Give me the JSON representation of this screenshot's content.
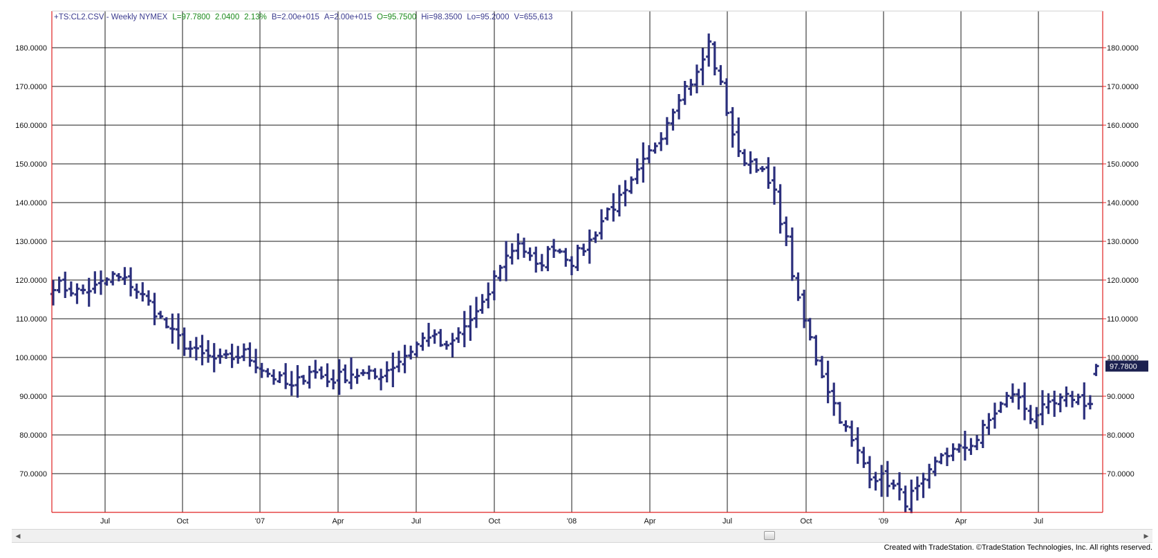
{
  "header": {
    "symbol": "+TS:CL2.CSV - Weekly  NYMEX",
    "last": "L=97.7800",
    "change": "2.0400",
    "change_pct": "2.13%",
    "bid": "B=2.00e+015",
    "ask": "A=2.00e+015",
    "open": "O=95.7500",
    "high": "Hi=98.3500",
    "low": "Lo=95.2000",
    "volume": "V=655,613"
  },
  "last_price_label": "97.7800",
  "footer_text": "Created with TradeStation. ©TradeStation Technologies, Inc. All rights reserved.",
  "colors": {
    "bars": "#2b2f7c",
    "header_dark": "#3b3b8f",
    "header_green": "#1a8a1a",
    "frame": "#e02020",
    "grid": "#1a1a1a",
    "last_label_bg": "#1c2150"
  },
  "chart_data": {
    "type": "ohlc-bar",
    "interval": "weekly",
    "x_tick_labels": [
      "Jul",
      "Oct",
      "'07",
      "Apr",
      "Jul",
      "Oct",
      "'08",
      "Apr",
      "Jul",
      "Oct",
      "'09",
      "Apr",
      "Jul"
    ],
    "y_tick_labels": [
      "70.0000",
      "80.0000",
      "90.0000",
      "100.0000",
      "110.0000",
      "120.0000",
      "130.0000",
      "140.0000",
      "150.0000",
      "160.0000",
      "170.0000",
      "180.0000"
    ],
    "ylim": [
      60,
      184
    ],
    "grid": true,
    "anchors": [
      [
        0,
        119
      ],
      [
        4,
        117
      ],
      [
        7,
        118
      ],
      [
        10,
        121
      ],
      [
        13,
        119
      ],
      [
        16,
        114
      ],
      [
        20,
        106
      ],
      [
        24,
        101
      ],
      [
        28,
        99
      ],
      [
        32,
        101
      ],
      [
        36,
        96
      ],
      [
        40,
        92
      ],
      [
        43,
        97
      ],
      [
        46,
        94
      ],
      [
        50,
        96
      ],
      [
        54,
        95
      ],
      [
        57,
        98
      ],
      [
        60,
        102
      ],
      [
        63,
        106
      ],
      [
        66,
        102
      ],
      [
        69,
        108
      ],
      [
        72,
        113
      ],
      [
        75,
        124
      ],
      [
        78,
        130
      ],
      [
        81,
        123
      ],
      [
        84,
        129
      ],
      [
        87,
        125
      ],
      [
        90,
        130
      ],
      [
        93,
        138
      ],
      [
        96,
        142
      ],
      [
        99,
        150
      ],
      [
        102,
        158
      ],
      [
        105,
        168
      ],
      [
        108,
        173
      ],
      [
        110,
        181
      ],
      [
        112,
        170
      ],
      [
        115,
        152
      ],
      [
        118,
        150
      ],
      [
        121,
        142
      ],
      [
        123,
        130
      ],
      [
        125,
        114
      ],
      [
        128,
        100
      ],
      [
        131,
        88
      ],
      [
        134,
        78
      ],
      [
        137,
        70
      ],
      [
        140,
        68
      ],
      [
        143,
        63
      ],
      [
        146,
        67
      ],
      [
        149,
        75
      ],
      [
        152,
        76
      ],
      [
        155,
        79
      ],
      [
        158,
        86
      ],
      [
        161,
        91
      ],
      [
        164,
        85
      ],
      [
        167,
        87
      ],
      [
        171,
        90
      ],
      [
        174,
        88
      ],
      [
        175,
        97.78
      ]
    ],
    "last": {
      "open": 95.75,
      "high": 98.35,
      "low": 95.2,
      "close": 97.78
    }
  }
}
